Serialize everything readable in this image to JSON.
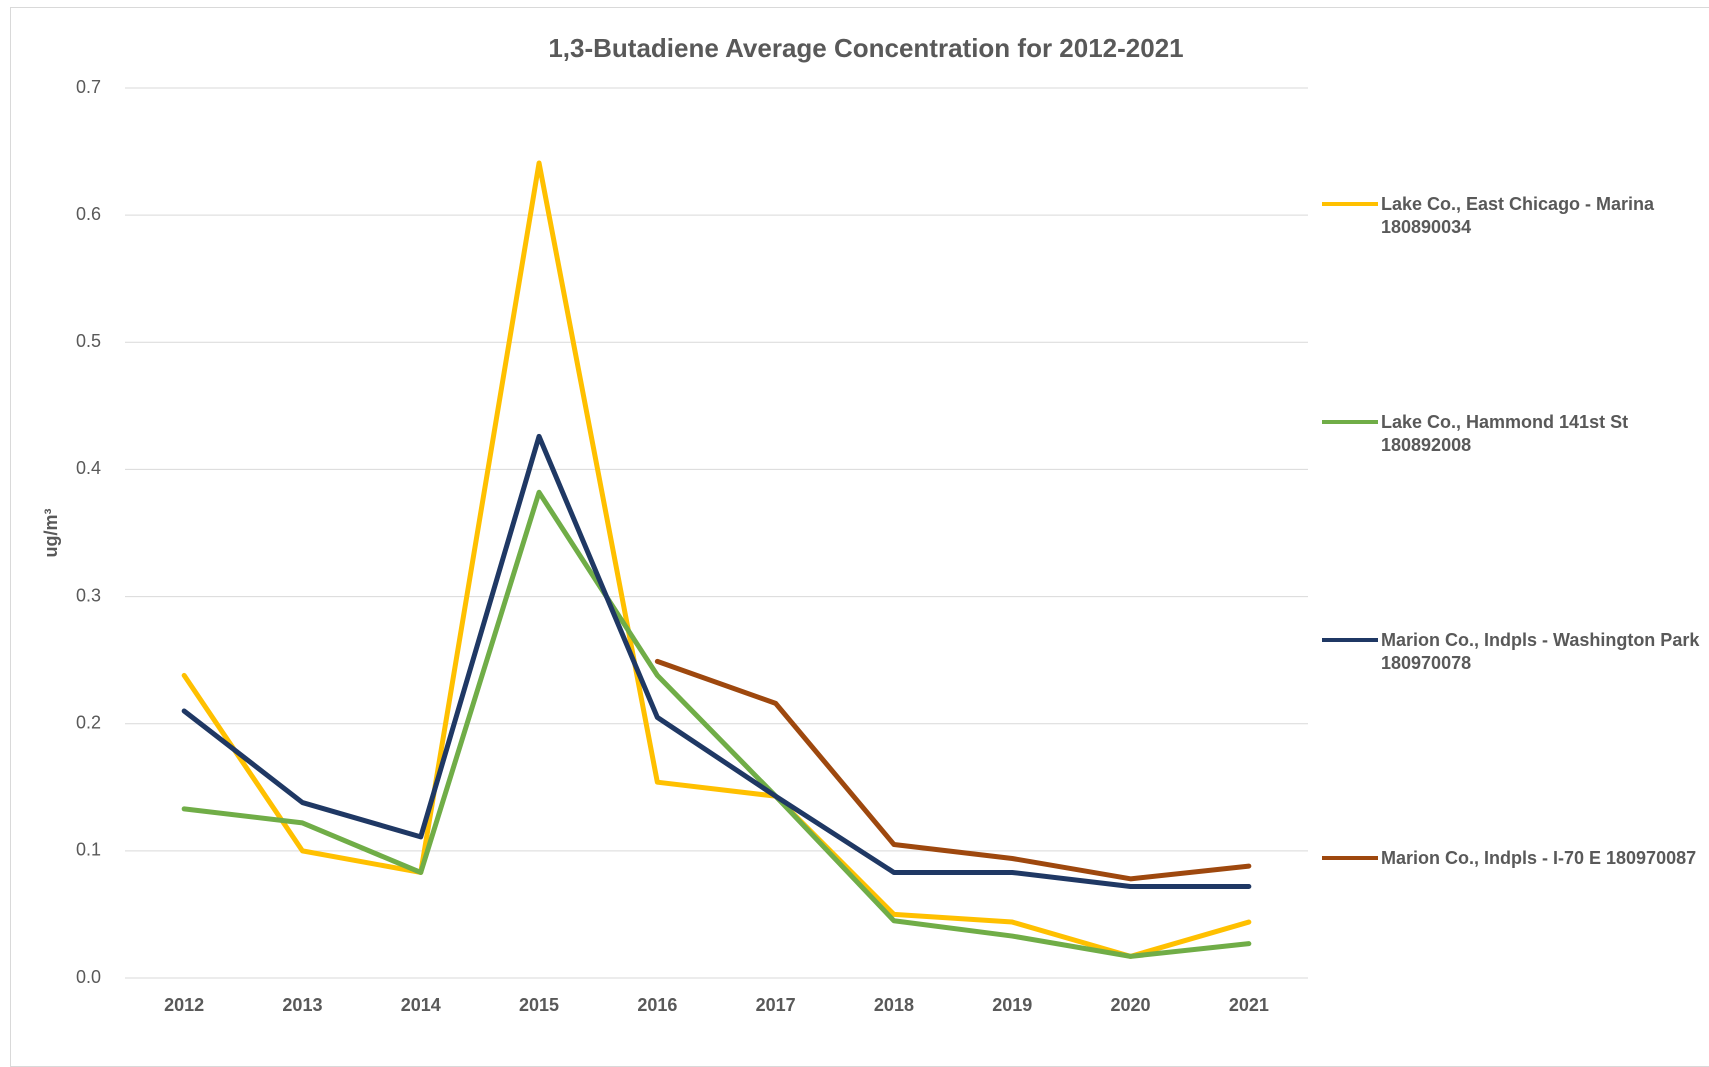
{
  "chart_data": {
    "type": "line",
    "title": "1,3-Butadiene Average Concentration for 2012-2021",
    "y_label": "ug/m³",
    "categories": [
      "2012",
      "2013",
      "2014",
      "2015",
      "2016",
      "2017",
      "2018",
      "2019",
      "2020",
      "2021"
    ],
    "series": [
      {
        "name": "Lake Co., East Chicago - Marina 180890034",
        "color": "#ffc000",
        "values": [
          0.238,
          0.1,
          0.083,
          0.641,
          0.154,
          0.143,
          0.05,
          0.044,
          0.017,
          0.044
        ]
      },
      {
        "name": "Lake Co., Hammond 141st St 180892008",
        "color": "#70ad47",
        "values": [
          0.133,
          0.122,
          0.083,
          0.382,
          0.238,
          0.143,
          0.045,
          0.033,
          0.017,
          0.027
        ]
      },
      {
        "name": "Marion Co., Indpls - Washington Park 180970078",
        "color": "#1f3864",
        "values": [
          0.21,
          0.138,
          0.111,
          0.426,
          0.205,
          0.143,
          0.083,
          0.083,
          0.072,
          0.072
        ]
      },
      {
        "name": "Marion Co., Indpls - I-70 E 180970087",
        "color": "#9e480e",
        "values": [
          null,
          null,
          null,
          null,
          0.249,
          0.216,
          0.105,
          0.094,
          0.078,
          0.088
        ]
      }
    ],
    "ylim": [
      0,
      0.7
    ],
    "yticks": [
      {
        "value": 0,
        "label": "0.0"
      },
      0.1,
      0.2,
      0.3,
      0.4,
      0.5,
      0.6,
      0.7
    ],
    "grid": true,
    "legend": "right"
  }
}
